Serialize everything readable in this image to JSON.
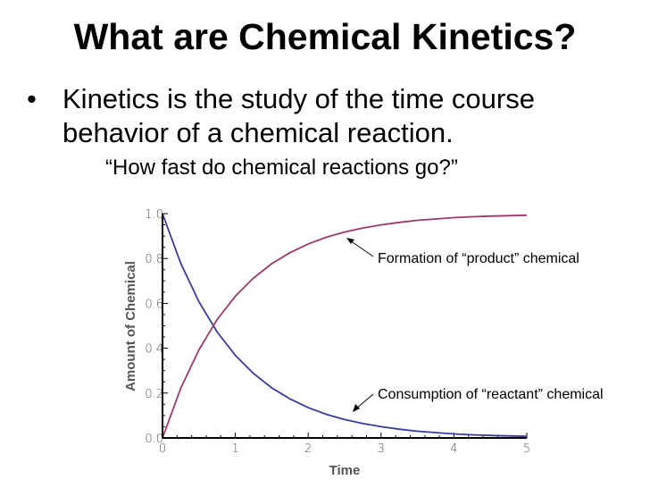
{
  "title": "What are Chemical Kinetics?",
  "bullet": {
    "marker": "•",
    "text": "Kinetics is the study of the time course behavior of a chemical reaction."
  },
  "quote": "“How fast do chemical reactions go?”",
  "chart_data": {
    "type": "line",
    "xlabel": "Time",
    "ylabel": "Amount of Chemical",
    "xlim": [
      0,
      5
    ],
    "ylim": [
      0,
      1
    ],
    "xticks": [
      "0",
      "1",
      "2",
      "3",
      "4",
      "5"
    ],
    "yticks": [
      "0.0",
      "0.2",
      "0.4",
      "0.6",
      "0.8",
      "1.0"
    ],
    "grid": false,
    "x": [
      0,
      0.25,
      0.5,
      0.75,
      1,
      1.25,
      1.5,
      1.75,
      2,
      2.25,
      2.5,
      2.75,
      3,
      3.25,
      3.5,
      3.75,
      4,
      4.25,
      4.5,
      4.75,
      5
    ],
    "series": [
      {
        "name": "reactant",
        "color": "#3b3b9a",
        "values": [
          1.0,
          0.779,
          0.607,
          0.472,
          0.368,
          0.287,
          0.223,
          0.174,
          0.135,
          0.105,
          0.082,
          0.064,
          0.05,
          0.039,
          0.03,
          0.024,
          0.018,
          0.014,
          0.011,
          0.009,
          0.007
        ]
      },
      {
        "name": "product",
        "color": "#9b3a6a",
        "values": [
          0.0,
          0.221,
          0.393,
          0.528,
          0.632,
          0.713,
          0.777,
          0.826,
          0.865,
          0.895,
          0.918,
          0.936,
          0.95,
          0.961,
          0.97,
          0.976,
          0.982,
          0.986,
          0.989,
          0.991,
          0.993
        ]
      }
    ],
    "annotations": [
      {
        "text": "Formation of “product” chemical",
        "target_series": "product",
        "at_x": 2.5
      },
      {
        "text": "Consumption of “reactant” chemical",
        "target_series": "reactant",
        "at_x": 2.6
      }
    ]
  }
}
